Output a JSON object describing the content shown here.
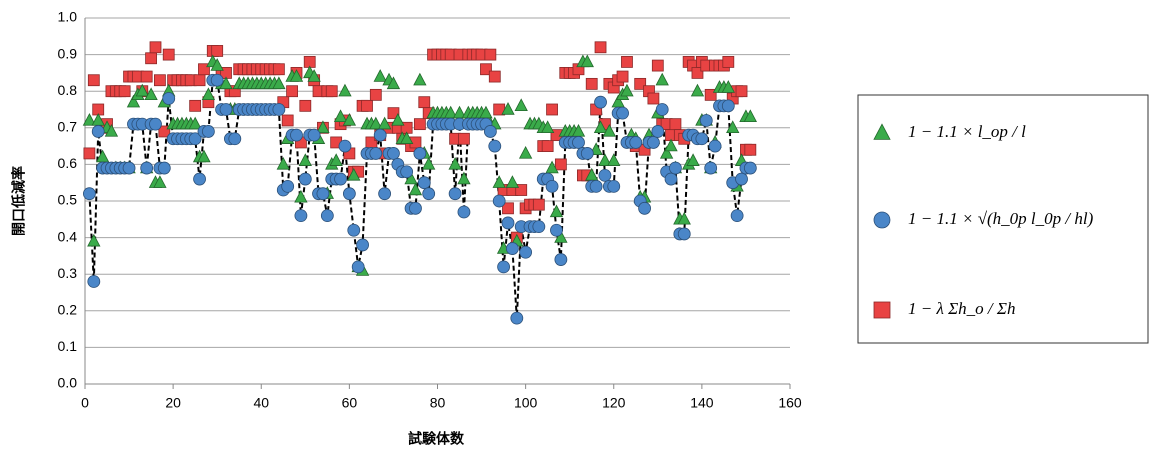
{
  "chart_data": {
    "type": "scatter",
    "xlabel": "試験体数",
    "ylabel": "開口低減率",
    "xlim": [
      0,
      160
    ],
    "xticks": [
      0,
      20,
      40,
      60,
      80,
      100,
      120,
      140,
      160
    ],
    "ylim": [
      0,
      1
    ],
    "yticks": [
      {
        "value": 0,
        "label": "0.0"
      },
      {
        "value": 0.1,
        "label": "0.1"
      },
      {
        "value": 0.2,
        "label": "0.2"
      },
      {
        "value": 0.3,
        "label": "0.3"
      },
      {
        "value": 0.4,
        "label": "0.4"
      },
      {
        "value": 0.5,
        "label": "0.5"
      },
      {
        "value": 0.6,
        "label": "0.6"
      },
      {
        "value": 0.7,
        "label": "0.7"
      },
      {
        "value": 0.8,
        "label": "0.8"
      },
      {
        "value": 0.9,
        "label": "0.9"
      },
      {
        "value": 1,
        "label": "1.0"
      }
    ],
    "grid": true,
    "legend": "right",
    "x": [
      1,
      2,
      3,
      4,
      5,
      6,
      7,
      8,
      9,
      10,
      11,
      12,
      13,
      14,
      15,
      16,
      17,
      18,
      19,
      20,
      21,
      22,
      23,
      24,
      25,
      26,
      27,
      28,
      29,
      30,
      31,
      32,
      33,
      34,
      35,
      36,
      37,
      38,
      39,
      40,
      41,
      42,
      43,
      44,
      45,
      46,
      47,
      48,
      49,
      50,
      51,
      52,
      53,
      54,
      55,
      56,
      57,
      58,
      59,
      60,
      61,
      62,
      63,
      64,
      65,
      66,
      67,
      68,
      69,
      70,
      71,
      72,
      73,
      74,
      75,
      76,
      77,
      78,
      79,
      80,
      81,
      82,
      83,
      84,
      85,
      86,
      87,
      88,
      89,
      90,
      91,
      92,
      93,
      94,
      95,
      96,
      97,
      98,
      99,
      100,
      101,
      102,
      103,
      104,
      105,
      106,
      107,
      108,
      109,
      110,
      111,
      112,
      113,
      114,
      115,
      116,
      117,
      118,
      119,
      120,
      121,
      122,
      123,
      124,
      125,
      126,
      127,
      128,
      129,
      130,
      131,
      132,
      133,
      134,
      135,
      136,
      137,
      138,
      139,
      140,
      141,
      142,
      143,
      144,
      145,
      146,
      147,
      148,
      149,
      150,
      151
    ],
    "series": [
      {
        "name": "1 − 1.1 × l_op / l",
        "marker": "triangle",
        "color": "#3aab4a",
        "values": [
          0.72,
          0.39,
          0.72,
          0.62,
          0.7,
          0.69,
          0.59,
          0.59,
          0.59,
          0.59,
          0.77,
          0.79,
          0.8,
          0.59,
          0.79,
          0.55,
          0.55,
          0.77,
          0.8,
          0.71,
          0.71,
          0.71,
          0.71,
          0.71,
          0.71,
          0.62,
          0.62,
          0.79,
          0.88,
          0.87,
          0.82,
          0.82,
          0.75,
          0.75,
          0.82,
          0.82,
          0.82,
          0.82,
          0.82,
          0.82,
          0.82,
          0.82,
          0.82,
          0.82,
          0.6,
          0.67,
          0.84,
          0.84,
          0.51,
          0.61,
          0.85,
          0.84,
          0.67,
          0.7,
          0.52,
          0.6,
          0.61,
          0.73,
          0.8,
          0.72,
          0.57,
          0.32,
          0.31,
          0.71,
          0.71,
          0.71,
          0.84,
          0.71,
          0.83,
          0.82,
          0.72,
          0.67,
          0.67,
          0.56,
          0.53,
          0.83,
          0.63,
          0.6,
          0.74,
          0.74,
          0.74,
          0.74,
          0.74,
          0.6,
          0.74,
          0.56,
          0.74,
          0.74,
          0.74,
          0.74,
          0.74,
          0.71,
          0.71,
          0.55,
          0.37,
          0.75,
          0.55,
          0.39,
          0.76,
          0.63,
          0.71,
          0.71,
          0.71,
          0.7,
          0.7,
          0.59,
          0.47,
          0.4,
          0.69,
          0.69,
          0.69,
          0.69,
          0.88,
          0.88,
          0.57,
          0.64,
          0.7,
          0.61,
          0.69,
          0.61,
          0.77,
          0.79,
          0.8,
          0.68,
          0.67,
          0.51,
          0.51,
          0.68,
          0.67,
          0.74,
          0.83,
          0.63,
          0.65,
          0.59,
          0.45,
          0.45,
          0.6,
          0.61,
          0.8,
          0.72,
          0.72,
          0.59,
          0.66,
          0.81,
          0.81,
          0.81,
          0.7,
          0.54,
          0.61,
          0.73,
          0.73
        ]
      },
      {
        "name": "1 − 1.1 × √(h_0p l_0p / hl)",
        "marker": "circle",
        "color": "#4a86c8",
        "line_style": "dashed",
        "values": [
          0.52,
          0.28,
          0.69,
          0.59,
          0.59,
          0.59,
          0.59,
          0.59,
          0.59,
          0.59,
          0.71,
          0.71,
          0.71,
          0.59,
          0.71,
          0.71,
          0.59,
          0.59,
          0.78,
          0.67,
          0.67,
          0.67,
          0.67,
          0.67,
          0.67,
          0.56,
          0.69,
          0.69,
          0.83,
          0.83,
          0.75,
          0.75,
          0.67,
          0.67,
          0.75,
          0.75,
          0.75,
          0.75,
          0.75,
          0.75,
          0.75,
          0.75,
          0.75,
          0.75,
          0.53,
          0.54,
          0.68,
          0.68,
          0.46,
          0.56,
          0.68,
          0.68,
          0.52,
          0.52,
          0.46,
          0.56,
          0.56,
          0.56,
          0.65,
          0.52,
          0.42,
          0.32,
          0.38,
          0.63,
          0.63,
          0.63,
          0.68,
          0.52,
          0.63,
          0.63,
          0.6,
          0.58,
          0.58,
          0.48,
          0.48,
          0.63,
          0.55,
          0.52,
          0.71,
          0.71,
          0.71,
          0.71,
          0.71,
          0.52,
          0.71,
          0.47,
          0.71,
          0.71,
          0.71,
          0.71,
          0.71,
          0.69,
          0.65,
          0.5,
          0.32,
          0.44,
          0.37,
          0.18,
          0.43,
          0.36,
          0.43,
          0.43,
          0.43,
          0.56,
          0.56,
          0.54,
          0.42,
          0.34,
          0.66,
          0.66,
          0.66,
          0.66,
          0.63,
          0.63,
          0.54,
          0.54,
          0.77,
          0.57,
          0.54,
          0.54,
          0.74,
          0.74,
          0.66,
          0.66,
          0.66,
          0.5,
          0.48,
          0.66,
          0.66,
          0.69,
          0.75,
          0.58,
          0.56,
          0.59,
          0.41,
          0.41,
          0.68,
          0.68,
          0.67,
          0.67,
          0.72,
          0.59,
          0.65,
          0.76,
          0.76,
          0.76,
          0.55,
          0.46,
          0.56,
          0.59,
          0.59
        ]
      },
      {
        "name": "1 − λ Σh_o / Σh",
        "marker": "square",
        "color": "#e84343",
        "values": [
          0.63,
          0.83,
          0.75,
          0.7,
          0.71,
          0.8,
          0.8,
          0.8,
          0.8,
          0.84,
          0.84,
          0.84,
          0.8,
          0.84,
          0.89,
          0.92,
          0.83,
          0.69,
          0.9,
          0.83,
          0.83,
          0.83,
          0.83,
          0.83,
          0.76,
          0.83,
          0.86,
          0.77,
          0.91,
          0.91,
          0.85,
          0.85,
          0.8,
          0.8,
          0.86,
          0.86,
          0.86,
          0.86,
          0.86,
          0.86,
          0.86,
          0.86,
          0.86,
          0.86,
          0.77,
          0.72,
          0.8,
          0.85,
          0.66,
          0.76,
          0.88,
          0.83,
          0.8,
          0.7,
          0.8,
          0.8,
          0.66,
          0.71,
          0.72,
          0.63,
          0.58,
          0.58,
          0.76,
          0.76,
          0.66,
          0.79,
          0.68,
          0.63,
          0.7,
          0.74,
          0.7,
          0.67,
          0.7,
          0.65,
          0.66,
          0.71,
          0.77,
          0.74,
          0.9,
          0.9,
          0.9,
          0.9,
          0.9,
          0.67,
          0.9,
          0.67,
          0.9,
          0.9,
          0.9,
          0.9,
          0.86,
          0.9,
          0.84,
          0.75,
          0.53,
          0.48,
          0.53,
          0.4,
          0.53,
          0.48,
          0.49,
          0.49,
          0.49,
          0.65,
          0.65,
          0.75,
          0.68,
          0.6,
          0.85,
          0.85,
          0.85,
          0.86,
          0.57,
          0.57,
          0.82,
          0.75,
          0.92,
          0.71,
          0.82,
          0.81,
          0.83,
          0.84,
          0.88,
          0.66,
          0.65,
          0.82,
          0.64,
          0.8,
          0.78,
          0.87,
          0.71,
          0.71,
          0.68,
          0.71,
          0.68,
          0.67,
          0.88,
          0.87,
          0.85,
          0.88,
          0.87,
          0.79,
          0.87,
          0.87,
          0.87,
          0.88,
          0.78,
          0.8,
          0.8,
          0.64,
          0.64
        ]
      }
    ]
  }
}
